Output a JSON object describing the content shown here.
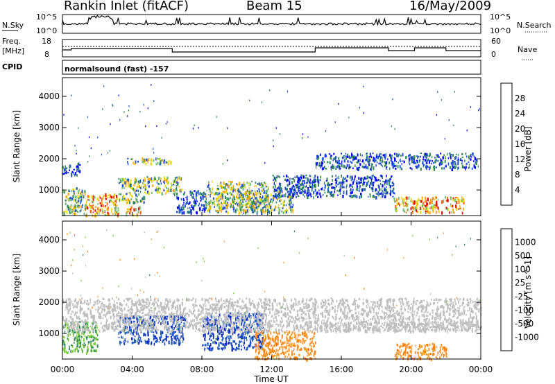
{
  "header": {
    "site": "Rankin Inlet (fitACF)",
    "beam": "Beam 15",
    "date": "16/May/2009"
  },
  "top_panels": {
    "nsky_label": "N.Sky",
    "nsky_ticks": [
      "10^5",
      "10^0"
    ],
    "nsearch_label": "N.Search",
    "nsearch_ticks": [
      "10^5",
      "10^0"
    ],
    "freq_label_1": "Freq.",
    "freq_label_2": "[MHz]",
    "freq_ticks": [
      "18",
      "8"
    ],
    "nave_label": "Nave",
    "nave_ticks": [
      "60",
      "0"
    ],
    "cpid_label": "CPID",
    "cpid_text": "normalsound (fast) -157"
  },
  "axes": {
    "x_ticks": [
      "00:00",
      "04:00",
      "08:00",
      "12:00",
      "16:00",
      "20:00",
      "00:00"
    ],
    "x_label": "Time UT",
    "y_label": "Slant Range [km]",
    "y_ticks": [
      "1000",
      "2000",
      "3000",
      "4000"
    ]
  },
  "colors": {
    "power_scale": [
      "#0000ff",
      "#1e50d2",
      "#2e8b57",
      "#6fbf73",
      "#e8d800",
      "#ffa500",
      "#ff6000",
      "#e00000"
    ],
    "velocity_scale": [
      "#1030c0",
      "#2060c0",
      "#2e8b57",
      "#7ccd3c",
      "#bebebe",
      "#ffa040",
      "#ff8000",
      "#ff4000",
      "#e00000"
    ],
    "line": "#000000"
  },
  "chart_data": [
    {
      "type": "heatmap",
      "title": "",
      "xlabel": "",
      "ylabel": "Slant Range [km]",
      "xlim": [
        0,
        24
      ],
      "ylim": [
        180,
        4600
      ],
      "colorbar_label": "Power [dB]",
      "colorbar_ticks": [
        "4",
        "8",
        "12",
        "16",
        "20",
        "24",
        "28"
      ],
      "echo_regions": [
        {
          "t": [
            0.0,
            1.3
          ],
          "r": [
            250,
            1100
          ],
          "level": "medium"
        },
        {
          "t": [
            1.3,
            3.2
          ],
          "r": [
            200,
            900
          ],
          "level": "high"
        },
        {
          "t": [
            3.2,
            4.7
          ],
          "r": [
            600,
            1400
          ],
          "level": "medium"
        },
        {
          "t": [
            3.6,
            4.5
          ],
          "r": [
            200,
            500
          ],
          "level": "high"
        },
        {
          "t": [
            4.7,
            6.8
          ],
          "r": [
            900,
            1450
          ],
          "level": "medium"
        },
        {
          "t": [
            6.5,
            8.2
          ],
          "r": [
            300,
            1000
          ],
          "level": "low"
        },
        {
          "t": [
            8.2,
            11.8
          ],
          "r": [
            300,
            1300
          ],
          "level": "medium"
        },
        {
          "t": [
            10.0,
            13.2
          ],
          "r": [
            300,
            1000
          ],
          "level": "medium"
        },
        {
          "t": [
            12.0,
            19.0
          ],
          "r": [
            800,
            1500
          ],
          "level": "low"
        },
        {
          "t": [
            19.0,
            23.0
          ],
          "r": [
            300,
            800
          ],
          "level": "high"
        },
        {
          "t": [
            0.0,
            1.0
          ],
          "r": [
            1500,
            1900
          ],
          "level": "low"
        },
        {
          "t": [
            3.7,
            6.4
          ],
          "r": [
            1850,
            2050
          ],
          "level": "medium"
        },
        {
          "t": [
            14.5,
            23.9
          ],
          "r": [
            1700,
            2200
          ],
          "level": "low"
        }
      ]
    },
    {
      "type": "heatmap",
      "title": "",
      "xlabel": "Time UT",
      "ylabel": "Slant Range [km]",
      "xlim": [
        0,
        24
      ],
      "ylim": [
        180,
        4600
      ],
      "colorbar_label": "Velocity [m s^-1]",
      "colorbar_ticks": [
        "1000",
        "500",
        "100",
        "25",
        "-25",
        "-100",
        "-500",
        "-1000"
      ],
      "echo_regions": [
        {
          "t": [
            0.0,
            2.0
          ],
          "r": [
            400,
            1400
          ],
          "level": "green"
        },
        {
          "t": [
            3.2,
            7.0
          ],
          "r": [
            700,
            1600
          ],
          "level": "blue"
        },
        {
          "t": [
            8.0,
            11.5
          ],
          "r": [
            500,
            1700
          ],
          "level": "blue"
        },
        {
          "t": [
            11.0,
            14.5
          ],
          "r": [
            200,
            1100
          ],
          "level": "orange"
        },
        {
          "t": [
            19.0,
            22.0
          ],
          "r": [
            200,
            700
          ],
          "level": "orange"
        },
        {
          "t": [
            0.0,
            24.0
          ],
          "r": [
            1100,
            2150
          ],
          "level": "gray"
        },
        {
          "t": [
            14.0,
            24.0
          ],
          "r": [
            1100,
            1400
          ],
          "level": "gray"
        }
      ]
    }
  ]
}
